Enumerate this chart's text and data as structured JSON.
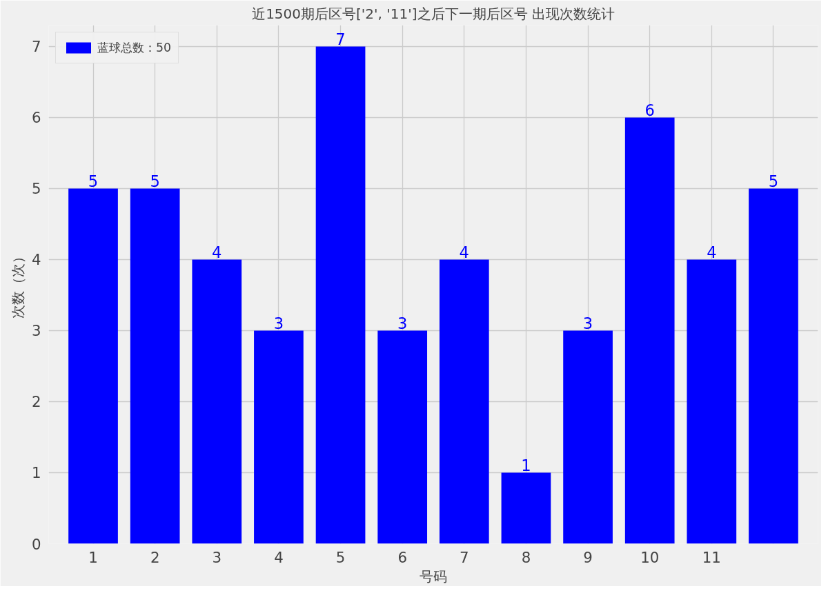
{
  "chart_data": {
    "type": "bar",
    "title": "近1500期后区号['2', '11']之后下一期后区号 出现次数统计",
    "xlabel": "号码",
    "ylabel": "次数（次）",
    "categories": [
      "1",
      "2",
      "3",
      "4",
      "5",
      "6",
      "7",
      "8",
      "9",
      "10",
      "11",
      null
    ],
    "series": [
      {
        "name": "蓝球总数：50",
        "color": "#0000ff",
        "values": [
          5,
          5,
          4,
          3,
          7,
          3,
          4,
          1,
          3,
          6,
          4,
          5
        ]
      }
    ],
    "ylim": [
      0,
      7.3
    ],
    "yticks": [
      0,
      1,
      2,
      3,
      4,
      5,
      6,
      7
    ],
    "grid": true,
    "legend": "top left",
    "data_labels": true
  }
}
